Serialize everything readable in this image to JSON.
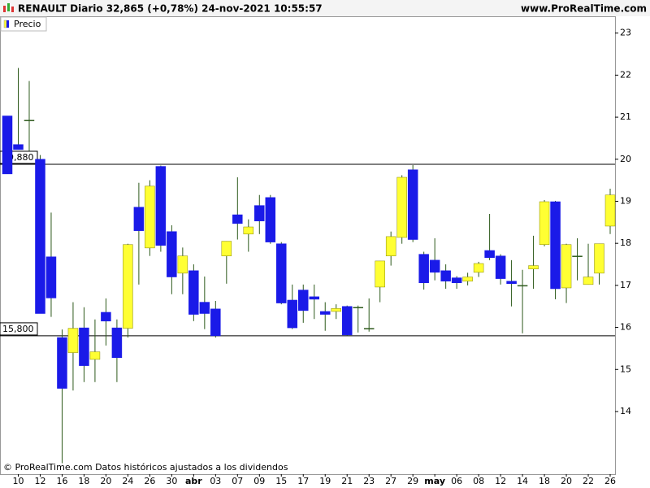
{
  "chart_data": {
    "type": "candlestick",
    "title": "RENAULT Diario 32,865 (+0,78%) 24-nov-2021 10:55:57",
    "source": "www.ProRealTime.com",
    "footer": "© ProRealTime.com Datos históricos ajustados a los dividendos",
    "categories": [
      null,
      "10",
      null,
      "12",
      null,
      "16",
      null,
      "18",
      null,
      "20",
      null,
      "24",
      null,
      "26",
      null,
      "30",
      null,
      "abr",
      null,
      "03",
      null,
      "07",
      null,
      "09",
      null,
      "15",
      null,
      "17",
      null,
      "19",
      null,
      "21",
      null,
      "23",
      null,
      "27",
      null,
      "29",
      null,
      "may",
      null,
      "06",
      null,
      "08",
      null,
      "12",
      null,
      "14",
      null,
      "18",
      null,
      "20",
      null,
      "22",
      null,
      "26"
    ],
    "month_labels": [
      "abr",
      "may"
    ],
    "series": [
      {
        "name": "Precio",
        "up_color": "#ffff33",
        "down_color": "#1a1ae8",
        "wick_color": "#2e5a1c",
        "open": [
          21.03,
          20.35,
          20.93,
          20.0,
          17.68,
          15.76,
          15.4,
          15.99,
          15.24,
          16.36,
          15.99,
          15.98,
          18.86,
          17.89,
          19.83,
          18.28,
          17.29,
          17.35,
          16.6,
          16.44,
          17.7,
          18.68,
          18.22,
          18.9,
          19.09,
          17.99,
          16.65,
          16.89,
          16.73,
          16.38,
          16.38,
          16.5,
          16.48,
          15.98,
          16.96,
          17.7,
          18.14,
          19.75,
          17.74,
          17.6,
          17.35,
          17.18,
          17.1,
          17.31,
          17.83,
          17.7,
          17.1,
          17.0,
          17.39,
          17.97,
          18.99,
          16.94,
          17.7,
          17.02,
          17.29,
          18.41
        ],
        "high": [
          21.03,
          22.17,
          21.86,
          20.1,
          18.73,
          15.95,
          16.6,
          16.48,
          16.19,
          16.69,
          16.19,
          17.99,
          19.44,
          19.5,
          19.85,
          18.43,
          17.9,
          17.5,
          17.21,
          16.63,
          18.05,
          19.57,
          18.57,
          19.15,
          19.15,
          18.03,
          17.02,
          17.02,
          17.02,
          16.6,
          16.55,
          16.52,
          16.52,
          16.69,
          17.58,
          18.28,
          19.62,
          19.86,
          17.8,
          18.12,
          17.5,
          17.22,
          17.3,
          17.56,
          18.7,
          17.74,
          17.6,
          17.37,
          18.18,
          19.03,
          19.01,
          17.99,
          18.12,
          17.99,
          17.99,
          19.3
        ],
        "low": [
          19.65,
          20.23,
          20.2,
          16.33,
          16.25,
          12.77,
          14.5,
          14.7,
          14.7,
          15.57,
          14.7,
          15.76,
          17.02,
          17.7,
          17.8,
          16.79,
          16.79,
          16.15,
          15.96,
          15.76,
          17.04,
          18.09,
          17.8,
          18.22,
          17.99,
          16.55,
          15.96,
          16.11,
          16.2,
          15.92,
          16.2,
          15.8,
          15.88,
          15.9,
          16.6,
          17.47,
          17.99,
          18.03,
          16.9,
          17.12,
          16.92,
          16.92,
          17.0,
          17.2,
          17.6,
          17.02,
          16.5,
          15.86,
          16.92,
          17.93,
          16.67,
          16.58,
          17.12,
          17.02,
          17.02,
          18.22
        ],
        "close": [
          19.65,
          20.23,
          20.93,
          16.33,
          16.7,
          14.55,
          15.98,
          15.09,
          15.42,
          16.15,
          15.28,
          17.97,
          18.3,
          19.36,
          17.95,
          17.2,
          17.7,
          16.31,
          16.33,
          15.8,
          18.05,
          18.47,
          18.39,
          18.53,
          18.03,
          16.58,
          15.99,
          16.4,
          16.67,
          16.31,
          16.45,
          15.82,
          16.48,
          15.98,
          17.58,
          18.16,
          19.57,
          18.09,
          17.06,
          17.31,
          17.1,
          17.06,
          17.2,
          17.52,
          17.66,
          17.16,
          17.04,
          17.0,
          17.47,
          18.99,
          16.92,
          17.97,
          17.7,
          17.2,
          17.99,
          19.15
        ]
      }
    ],
    "levels": [
      {
        "value": 19.88,
        "label": "19,880"
      },
      {
        "value": 15.8,
        "label": "15,800"
      }
    ],
    "ylim": [
      12.51,
      23.4
    ],
    "yticks": [
      14,
      15,
      16,
      17,
      18,
      19,
      20,
      21,
      22,
      23
    ]
  }
}
